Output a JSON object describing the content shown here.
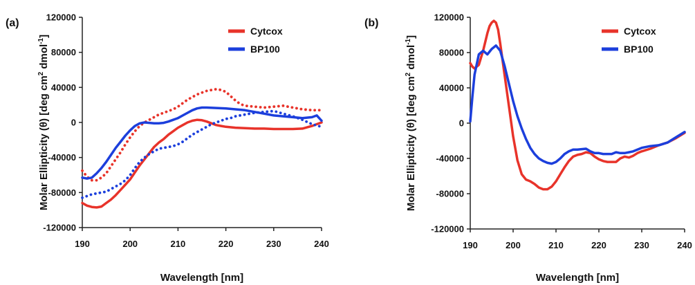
{
  "colors": {
    "cytcox": "#e8332a",
    "bp100": "#1c3fdc",
    "axis": "#222222"
  },
  "chart_data": [
    {
      "type": "line",
      "panel_label": "(a)",
      "xlabel": "Wavelength [nm]",
      "ylabel_main": "Molar Ellipticity (θ) [deg cm",
      "ylabel_sup1": "2",
      "ylabel_mid": " dmol",
      "ylabel_sup2": "-1",
      "ylabel_end": "]",
      "xlim": [
        190,
        240
      ],
      "ylim": [
        -120000,
        120000
      ],
      "xticks": [
        "190",
        "200",
        "210",
        "220",
        "230",
        "240"
      ],
      "yticks": [
        "-120000",
        "-80000",
        "-40000",
        "0",
        "40000",
        "80000",
        "120000"
      ],
      "legend_position": "top-right",
      "legend": [
        "Cytcox",
        "BP100"
      ],
      "series": [
        {
          "name": "Cytcox",
          "color_key": "cytcox",
          "style": "solid",
          "x": [
            190,
            191,
            192,
            193,
            194,
            195,
            196,
            197,
            198,
            199,
            200,
            201,
            202,
            203,
            204,
            205,
            206,
            207,
            208,
            209,
            210,
            211,
            212,
            213,
            214,
            215,
            216,
            217,
            218,
            219,
            220,
            222,
            224,
            226,
            228,
            230,
            232,
            234,
            236,
            238,
            239,
            240
          ],
          "y": [
            -92000,
            -95000,
            -96500,
            -97000,
            -96000,
            -92000,
            -88000,
            -83000,
            -77000,
            -71000,
            -65000,
            -57000,
            -49000,
            -42000,
            -35000,
            -28000,
            -23000,
            -19000,
            -14000,
            -10000,
            -6000,
            -3000,
            0,
            2000,
            3000,
            2500,
            1000,
            -1000,
            -3000,
            -4000,
            -5000,
            -6000,
            -6500,
            -7000,
            -7000,
            -7500,
            -7500,
            -7500,
            -7000,
            -4000,
            -2000,
            0
          ]
        },
        {
          "name": "Cytcox",
          "color_key": "cytcox",
          "style": "dotted",
          "x": [
            190,
            191,
            192,
            193,
            194,
            195,
            196,
            197,
            198,
            199,
            200,
            201,
            202,
            203,
            204,
            205,
            206,
            207,
            208,
            209,
            210,
            211,
            212,
            213,
            214,
            215,
            216,
            217,
            218,
            219,
            220,
            221,
            222,
            223,
            224,
            226,
            228,
            230,
            232,
            234,
            236,
            238,
            240
          ],
          "y": [
            -55000,
            -62000,
            -66000,
            -66000,
            -63000,
            -58000,
            -50000,
            -42000,
            -34000,
            -25000,
            -17000,
            -10000,
            -4000,
            0,
            3000,
            6000,
            9000,
            11000,
            13000,
            15000,
            18000,
            22000,
            26000,
            29000,
            32000,
            34000,
            36000,
            37000,
            38000,
            37000,
            35000,
            30000,
            25000,
            21000,
            19000,
            18000,
            17000,
            18000,
            19000,
            17000,
            15000,
            14000,
            14000
          ]
        },
        {
          "name": "BP100",
          "color_key": "bp100",
          "style": "solid",
          "x": [
            190,
            191,
            192,
            193,
            194,
            195,
            196,
            197,
            198,
            199,
            200,
            201,
            202,
            203,
            204,
            205,
            206,
            207,
            208,
            209,
            210,
            211,
            212,
            213,
            214,
            215,
            216,
            218,
            220,
            222,
            224,
            226,
            228,
            230,
            232,
            234,
            236,
            238,
            239,
            240
          ],
          "y": [
            -63000,
            -64000,
            -63000,
            -58000,
            -52000,
            -45000,
            -37000,
            -29000,
            -22000,
            -15000,
            -9000,
            -4000,
            -1000,
            0,
            -500,
            -1000,
            -1000,
            -500,
            1000,
            3000,
            5000,
            8000,
            11000,
            14000,
            16000,
            17000,
            17000,
            16500,
            16000,
            15000,
            14000,
            12000,
            10000,
            8000,
            7000,
            6000,
            5000,
            6000,
            8000,
            2000
          ]
        },
        {
          "name": "BP100",
          "color_key": "bp100",
          "style": "dotted",
          "x": [
            190,
            191,
            192,
            193,
            194,
            195,
            196,
            197,
            198,
            199,
            200,
            201,
            202,
            203,
            204,
            205,
            206,
            207,
            208,
            209,
            210,
            211,
            212,
            213,
            214,
            215,
            216,
            217,
            218,
            219,
            220,
            221,
            222,
            224,
            226,
            228,
            230,
            232,
            234,
            236,
            238,
            240
          ],
          "y": [
            -86000,
            -84000,
            -82000,
            -81000,
            -80000,
            -79000,
            -76000,
            -73000,
            -70000,
            -66000,
            -60000,
            -52000,
            -45000,
            -40000,
            -36000,
            -33000,
            -30000,
            -29000,
            -28000,
            -27000,
            -25000,
            -22000,
            -18000,
            -14000,
            -11000,
            -8000,
            -5000,
            -2000,
            0,
            2000,
            4000,
            5000,
            7000,
            9000,
            11000,
            12000,
            13000,
            10000,
            7000,
            3000,
            -2000,
            -5000
          ]
        }
      ]
    },
    {
      "type": "line",
      "panel_label": "(b)",
      "xlabel": "Wavelength [nm]",
      "ylabel_main": "Molar Ellipticity (θ) [deg cm",
      "ylabel_sup1": "2",
      "ylabel_mid": " dmol",
      "ylabel_sup2": "-1",
      "ylabel_end": "]",
      "xlim": [
        190,
        240
      ],
      "ylim": [
        -120000,
        120000
      ],
      "xticks": [
        "190",
        "200",
        "210",
        "220",
        "230",
        "240"
      ],
      "yticks": [
        "-120000",
        "-80000",
        "-40000",
        "0",
        "40000",
        "80000",
        "120000"
      ],
      "legend_position": "top-right",
      "legend": [
        "Cytcox",
        "BP100"
      ],
      "series": [
        {
          "name": "Cytcox",
          "color_key": "cytcox",
          "style": "solid",
          "x": [
            190,
            190.5,
            191,
            192,
            193,
            194,
            194.5,
            195,
            195.5,
            196,
            196.5,
            197,
            198,
            199,
            200,
            201,
            202,
            203,
            204,
            205,
            206,
            207,
            208,
            209,
            210,
            211,
            212,
            213,
            214,
            215,
            216,
            217,
            218,
            219,
            220,
            221,
            222,
            223,
            224,
            225,
            226,
            227,
            228,
            229,
            230,
            232,
            234,
            236,
            238,
            240
          ],
          "y": [
            68000,
            64000,
            62000,
            66000,
            82000,
            102000,
            110000,
            114000,
            116000,
            114000,
            106000,
            90000,
            55000,
            20000,
            -15000,
            -42000,
            -58000,
            -64000,
            -66000,
            -69000,
            -73000,
            -75000,
            -75000,
            -72000,
            -66000,
            -58000,
            -50000,
            -43000,
            -38000,
            -36000,
            -35000,
            -33000,
            -34000,
            -38000,
            -41000,
            -43000,
            -44000,
            -44000,
            -44000,
            -40000,
            -38000,
            -39000,
            -37000,
            -34000,
            -32000,
            -29000,
            -25000,
            -22000,
            -17000,
            -11000
          ]
        },
        {
          "name": "BP100",
          "color_key": "bp100",
          "style": "solid",
          "x": [
            190,
            190.5,
            191,
            192,
            193,
            194,
            195,
            196,
            197,
            198,
            199,
            200,
            201,
            202,
            203,
            204,
            205,
            206,
            207,
            208,
            209,
            210,
            211,
            212,
            213,
            214,
            215,
            216,
            217,
            218,
            219,
            220,
            221,
            222,
            223,
            224,
            225,
            226,
            227,
            228,
            229,
            230,
            232,
            234,
            236,
            238,
            240
          ],
          "y": [
            2000,
            30000,
            55000,
            78000,
            82000,
            78000,
            84000,
            88000,
            82000,
            65000,
            45000,
            25000,
            8000,
            -6000,
            -18000,
            -28000,
            -35000,
            -40000,
            -43000,
            -45000,
            -46000,
            -44000,
            -40000,
            -35000,
            -32000,
            -30000,
            -30000,
            -29500,
            -29000,
            -32000,
            -34000,
            -34000,
            -35000,
            -35000,
            -35000,
            -33000,
            -34000,
            -34000,
            -33000,
            -32000,
            -30000,
            -28000,
            -26000,
            -25000,
            -22000,
            -16000,
            -10000
          ]
        }
      ]
    }
  ]
}
